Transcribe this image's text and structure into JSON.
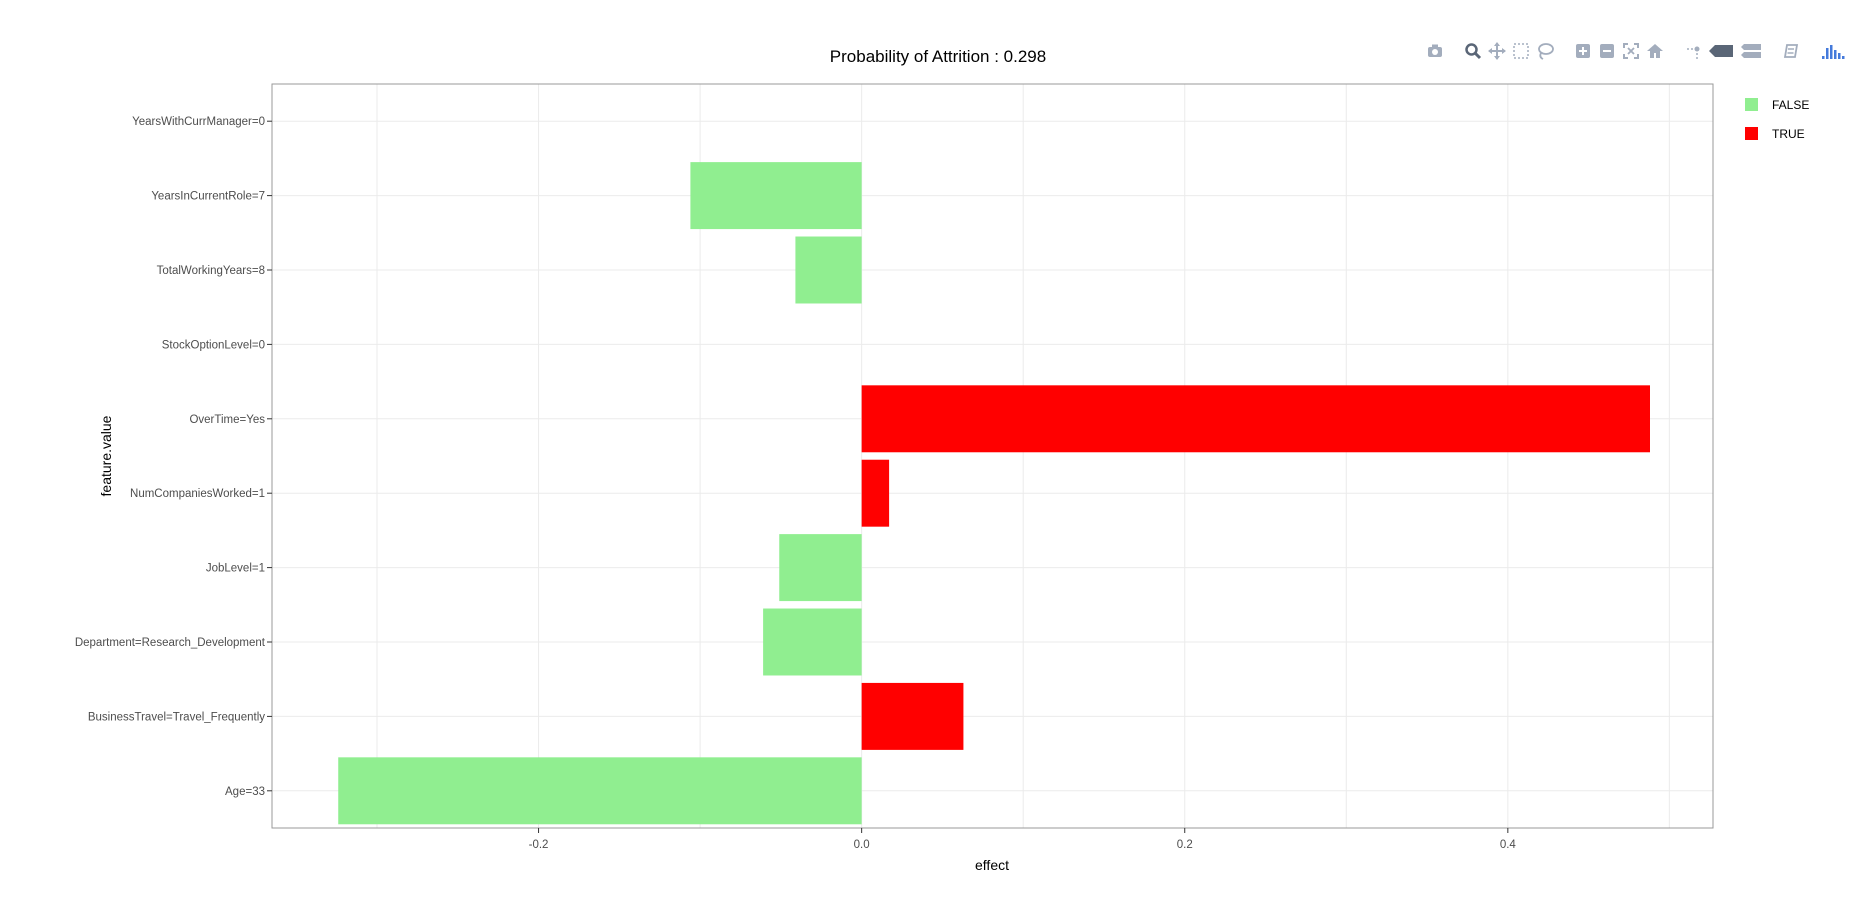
{
  "chart_data": {
    "type": "bar",
    "orientation": "horizontal",
    "title": "Probability of Attrition : 0.298",
    "xlabel": "effect",
    "ylabel": "feature.value",
    "xlim": [
      -0.365,
      0.527
    ],
    "xticks": [
      -0.2,
      0.0,
      0.2,
      0.4
    ],
    "xtick_labels": [
      "-0.2",
      "0.0",
      "0.2",
      "0.4"
    ],
    "grid": true,
    "legend_position": "right",
    "categories": [
      "YearsWithCurrManager=0",
      "YearsInCurrentRole=7",
      "TotalWorkingYears=8",
      "StockOptionLevel=0",
      "OverTime=Yes",
      "NumCompaniesWorked=1",
      "JobLevel=1",
      "Department=Research_Development",
      "BusinessTravel=Travel_Frequently",
      "Age=33"
    ],
    "values": [
      0.0,
      -0.106,
      -0.041,
      0.0,
      0.488,
      0.017,
      -0.051,
      -0.061,
      0.063,
      -0.324
    ],
    "groups": [
      "FALSE",
      "FALSE",
      "FALSE",
      "FALSE",
      "TRUE",
      "TRUE",
      "FALSE",
      "FALSE",
      "TRUE",
      "FALSE"
    ],
    "series": [
      {
        "name": "FALSE",
        "color": "#90EE90"
      },
      {
        "name": "TRUE",
        "color": "#FF0000"
      }
    ]
  },
  "toolbar": {
    "icons": [
      "camera-icon",
      "zoom-icon",
      "pan-icon",
      "box-select-icon",
      "lasso-select-icon",
      "zoom-in-icon",
      "zoom-out-icon",
      "autoscale-icon",
      "reset-axes-icon",
      "spike-lines-icon",
      "hover-closest-icon",
      "hover-compare-icon",
      "edit-chart-icon",
      "plotly-logo-icon"
    ]
  }
}
